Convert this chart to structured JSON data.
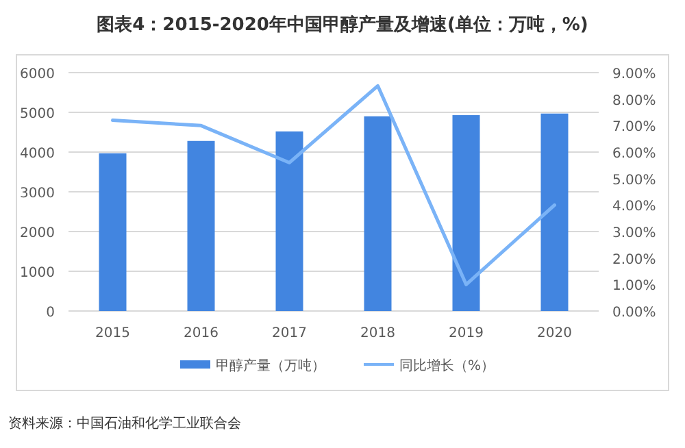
{
  "chart_data": {
    "type": "bar",
    "title": "图表4：2015-2020年中国甲醇产量及增速(单位：万吨，%)",
    "categories": [
      "2015",
      "2016",
      "2017",
      "2018",
      "2019",
      "2020"
    ],
    "series": [
      {
        "name": "甲醇产量（万吨）",
        "color": "#4285e0",
        "values": [
          3970,
          4280,
          4520,
          4900,
          4930,
          4970
        ]
      },
      {
        "name": "同比增长（%）",
        "type": "line",
        "axis": "y2",
        "color": "#7ab3f7",
        "values": [
          7.2,
          7.0,
          5.6,
          8.5,
          1.0,
          4.0
        ]
      }
    ],
    "ylim": [
      0,
      6000
    ],
    "yticks": [
      0,
      1000,
      2000,
      3000,
      4000,
      5000,
      6000
    ],
    "y2lim": [
      0,
      9
    ],
    "y2ticks": [
      {
        "value": 0,
        "label": "0.00%"
      },
      {
        "value": 1,
        "label": "1.00%"
      },
      {
        "value": 2,
        "label": "2.00%"
      },
      {
        "value": 3,
        "label": "3.00%"
      },
      {
        "value": 4,
        "label": "4.00%"
      },
      {
        "value": 5,
        "label": "5.00%"
      },
      {
        "value": 6,
        "label": "6.00%"
      },
      {
        "value": 7,
        "label": "7.00%"
      },
      {
        "value": 8,
        "label": "8.00%"
      },
      {
        "value": 9,
        "label": "9.00%"
      }
    ],
    "grid": "y",
    "legend": "bottom",
    "annotations": [
      "资料来源：中国石油和化学工业联合会"
    ]
  }
}
